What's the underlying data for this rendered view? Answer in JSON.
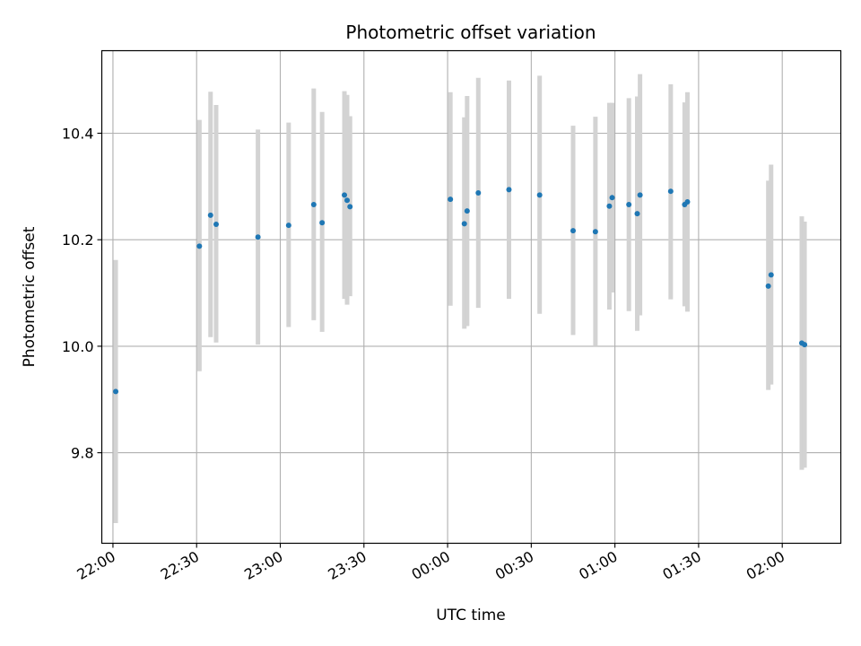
{
  "chart_data": {
    "type": "scatter",
    "title": "Photometric offset variation",
    "xlabel": "UTC time",
    "ylabel": "Photometric offset",
    "xlim": [
      "21:56",
      "02:21"
    ],
    "ylim": [
      9.63,
      10.555
    ],
    "x_ticks": [
      "22:00",
      "22:30",
      "23:00",
      "23:30",
      "00:00",
      "00:30",
      "01:00",
      "01:30",
      "02:00"
    ],
    "y_ticks": [
      9.8,
      10.0,
      10.2,
      10.4
    ],
    "y_tick_labels": [
      "9.8",
      "10.0",
      "10.2",
      "10.4"
    ],
    "grid": true,
    "colors": {
      "marker": "#1f77b4",
      "errorbar": "#d3d3d3",
      "grid": "#b0b0b0"
    },
    "points": [
      {
        "x": "22:01",
        "y": 9.915,
        "low": 9.668,
        "high": 10.162
      },
      {
        "x": "22:31",
        "y": 10.188,
        "low": 9.953,
        "high": 10.425
      },
      {
        "x": "22:35",
        "y": 10.246,
        "low": 10.017,
        "high": 10.478
      },
      {
        "x": "22:37",
        "y": 10.229,
        "low": 10.007,
        "high": 10.453
      },
      {
        "x": "22:52",
        "y": 10.205,
        "low": 10.003,
        "high": 10.407
      },
      {
        "x": "23:03",
        "y": 10.227,
        "low": 10.036,
        "high": 10.42
      },
      {
        "x": "23:12",
        "y": 10.266,
        "low": 10.049,
        "high": 10.484
      },
      {
        "x": "23:15",
        "y": 10.232,
        "low": 10.027,
        "high": 10.44
      },
      {
        "x": "23:23",
        "y": 10.284,
        "low": 10.089,
        "high": 10.479
      },
      {
        "x": "23:23",
        "y": 10.274,
        "low": 10.078,
        "high": 10.472
      },
      {
        "x": "23:25",
        "y": 10.262,
        "low": 10.094,
        "high": 10.432
      },
      {
        "x": "00:01",
        "y": 10.276,
        "low": 10.076,
        "high": 10.477
      },
      {
        "x": "00:06",
        "y": 10.23,
        "low": 10.033,
        "high": 10.43
      },
      {
        "x": "00:07",
        "y": 10.254,
        "low": 10.038,
        "high": 10.47
      },
      {
        "x": "00:11",
        "y": 10.288,
        "low": 10.072,
        "high": 10.504
      },
      {
        "x": "00:22",
        "y": 10.294,
        "low": 10.089,
        "high": 10.499
      },
      {
        "x": "00:33",
        "y": 10.284,
        "low": 10.061,
        "high": 10.508
      },
      {
        "x": "00:45",
        "y": 10.217,
        "low": 10.021,
        "high": 10.414
      },
      {
        "x": "00:53",
        "y": 10.215,
        "low": 10.0,
        "high": 10.431
      },
      {
        "x": "00:58",
        "y": 10.263,
        "low": 10.069,
        "high": 10.457
      },
      {
        "x": "00:59",
        "y": 10.279,
        "low": 10.101,
        "high": 10.457
      },
      {
        "x": "01:05",
        "y": 10.266,
        "low": 10.066,
        "high": 10.466
      },
      {
        "x": "01:08",
        "y": 10.249,
        "low": 10.029,
        "high": 10.469
      },
      {
        "x": "01:09",
        "y": 10.284,
        "low": 10.058,
        "high": 10.511
      },
      {
        "x": "01:20",
        "y": 10.291,
        "low": 10.088,
        "high": 10.492
      },
      {
        "x": "01:25",
        "y": 10.266,
        "low": 10.075,
        "high": 10.458
      },
      {
        "x": "01:26",
        "y": 10.271,
        "low": 10.065,
        "high": 10.477
      },
      {
        "x": "01:55",
        "y": 10.113,
        "low": 9.918,
        "high": 10.311
      },
      {
        "x": "01:56",
        "y": 10.134,
        "low": 9.928,
        "high": 10.341
      },
      {
        "x": "02:07",
        "y": 10.006,
        "low": 9.768,
        "high": 10.244
      },
      {
        "x": "02:08",
        "y": 10.003,
        "low": 9.772,
        "high": 10.234
      }
    ]
  }
}
